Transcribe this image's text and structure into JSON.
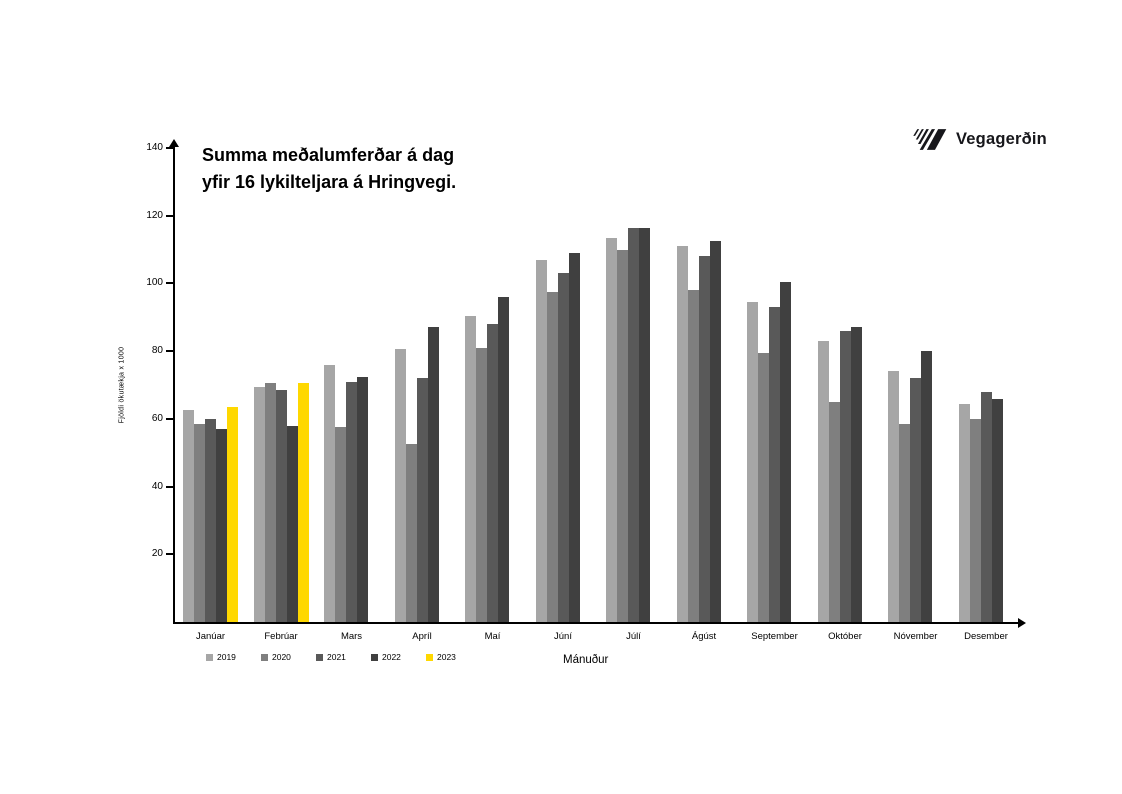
{
  "page": {
    "background": "#ffffff"
  },
  "logo": {
    "text": "Vegagerðin",
    "color": "#17171b"
  },
  "chart_data": {
    "type": "bar",
    "title": "Summa meðalumferðar á dag yfir 16 lykilteljara á Hringvegi.",
    "title_lines": [
      "Summa meðalumferðar á dag",
      "yfir 16 lykilteljara á Hringvegi."
    ],
    "xlabel": "Mánuður",
    "ylabel": "Fjöldi ökutækja x 1000",
    "ylim": [
      0,
      140
    ],
    "yticks": [
      20,
      40,
      60,
      80,
      100,
      120,
      140
    ],
    "grid": false,
    "legend_position": "bottom-left",
    "axis_color": "#000000",
    "categories": [
      "Janúar",
      "Febrúar",
      "Mars",
      "Apríl",
      "Maí",
      "Júní",
      "Júlí",
      "Ágúst",
      "September",
      "Október",
      "Nóvember",
      "Desember"
    ],
    "series": [
      {
        "name": "2019",
        "color": "#a6a6a6",
        "values": [
          62.5,
          69.5,
          76,
          80.5,
          90.5,
          107,
          113.5,
          111,
          94.5,
          83,
          74,
          64.5
        ]
      },
      {
        "name": "2020",
        "color": "#7f7f7f",
        "values": [
          58.5,
          70.5,
          57.5,
          52.5,
          81,
          97.5,
          110,
          98,
          79.5,
          65,
          58.5,
          60
        ]
      },
      {
        "name": "2021",
        "color": "#595959",
        "values": [
          60,
          68.5,
          71,
          72,
          88,
          103,
          116.5,
          108,
          93,
          86,
          72,
          68
        ]
      },
      {
        "name": "2022",
        "color": "#404040",
        "values": [
          57,
          58,
          72.5,
          87,
          96,
          109,
          116.5,
          112.5,
          100.5,
          87,
          80,
          66
        ]
      },
      {
        "name": "2023",
        "color": "#ffd800",
        "values": [
          63.5,
          70.5,
          null,
          null,
          null,
          null,
          null,
          null,
          null,
          null,
          null,
          null
        ]
      }
    ]
  }
}
